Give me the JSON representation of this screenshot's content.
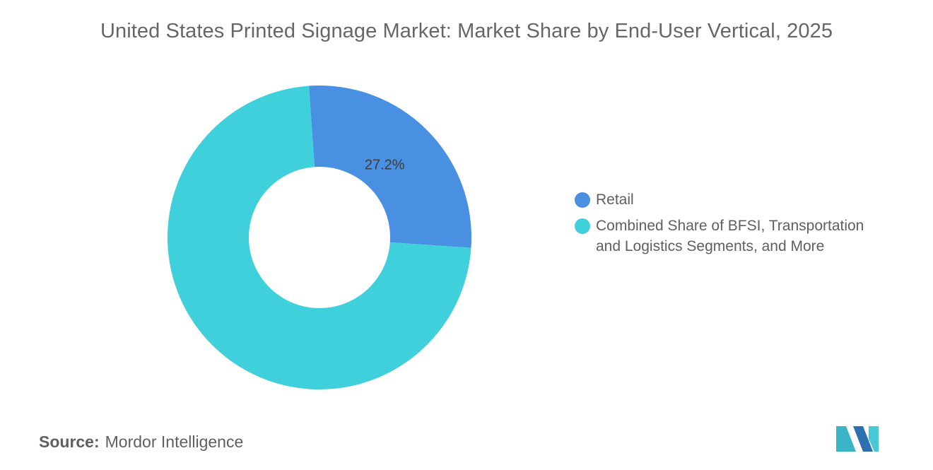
{
  "title": "United States Printed Signage Market: Market Share by End-User Vertical, 2025",
  "source": {
    "label": "Source:",
    "value": "Mordor Intelligence"
  },
  "logo": {
    "icon": "mordor-intelligence-logo",
    "colors": [
      "#3ab5c8",
      "#2e6fb0",
      "#46c9d5"
    ]
  },
  "chart_data": {
    "type": "pie",
    "variant": "donut",
    "title": "United States Printed Signage Market: Market Share by End-User Vertical, 2025",
    "legend_position": "right",
    "slices": [
      {
        "name": "Retail",
        "value": 27.2,
        "label": "27.2%",
        "color": "#4a90e2"
      },
      {
        "name": "Combined Share of BFSI, Transportation and Logistics Segments, and More",
        "value": 72.8,
        "label": "",
        "color": "#40d0db"
      }
    ]
  }
}
